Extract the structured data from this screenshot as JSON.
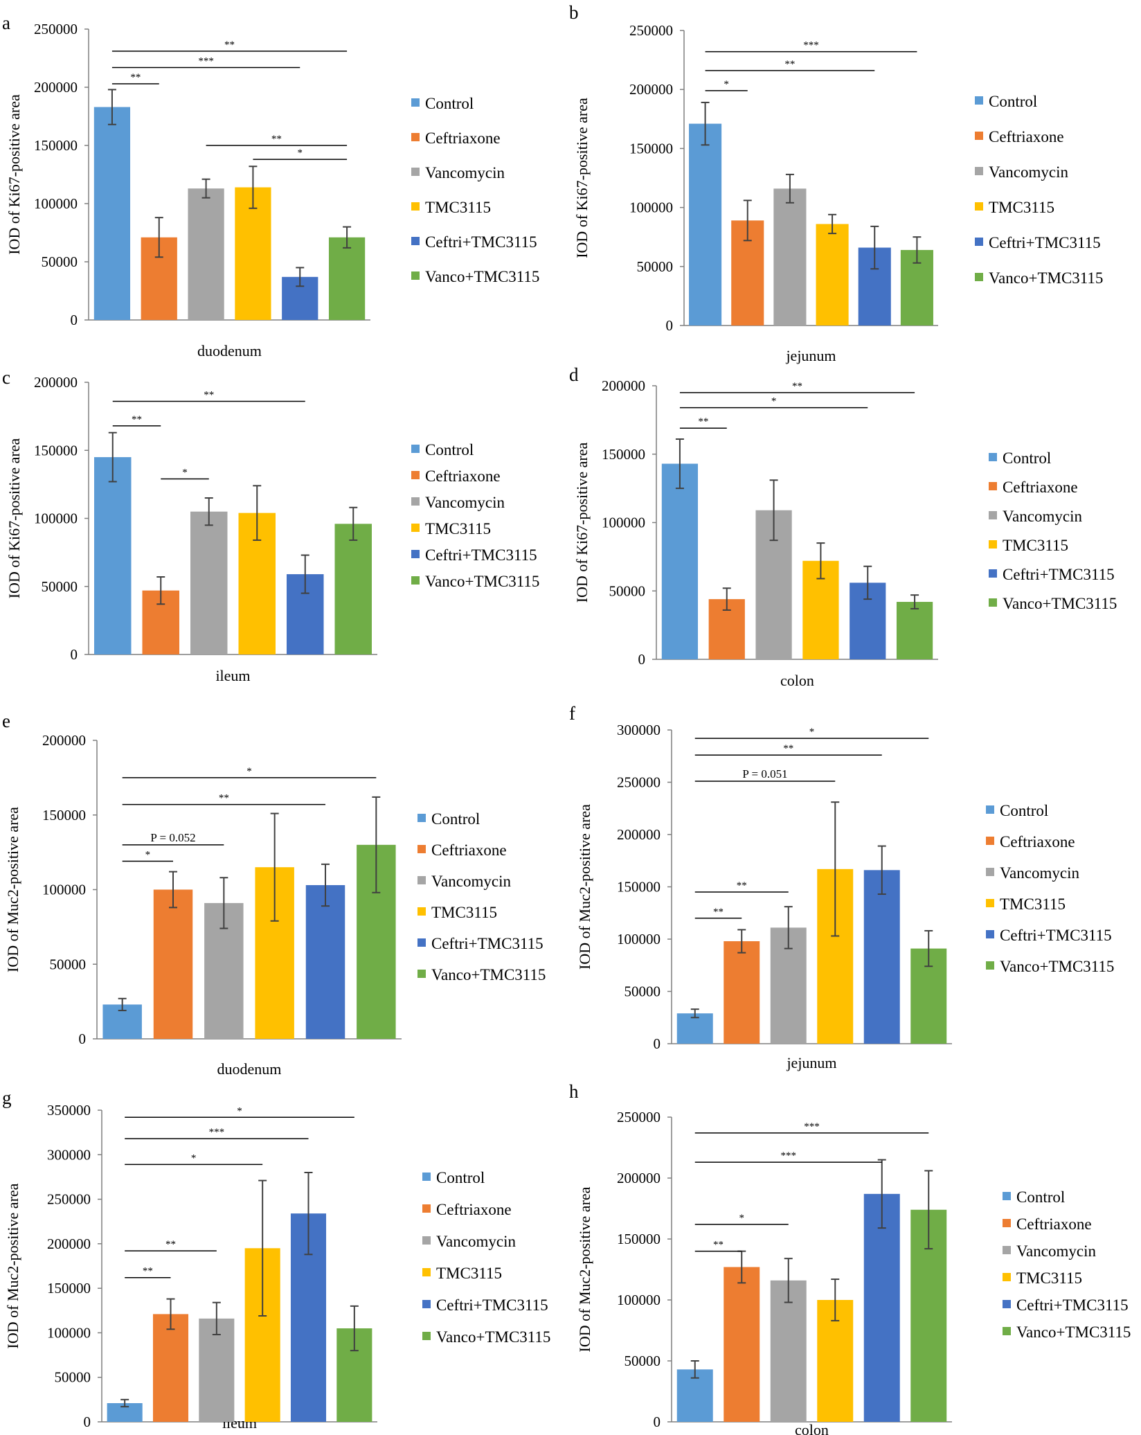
{
  "colors": {
    "Control": "#5b9bd5",
    "Ceftriaxone": "#ed7d31",
    "Vancomycin": "#a5a5a5",
    "TMC3115": "#ffc000",
    "Ceftri+TMC3115": "#4472c4",
    "Vanco+TMC3115": "#70ad47"
  },
  "chart_data": [
    {
      "panel": "a",
      "type": "bar",
      "ylabel": "IOD of Ki67-positive area",
      "xlabel": "duodenum",
      "ylim": [
        0,
        250000
      ],
      "yticks": [
        0,
        50000,
        100000,
        150000,
        200000,
        250000
      ],
      "series": [
        {
          "name": "Control",
          "value": 183000,
          "err": 15000
        },
        {
          "name": "Ceftriaxone",
          "value": 71000,
          "err": 17000
        },
        {
          "name": "Vancomycin",
          "value": 113000,
          "err": 8000
        },
        {
          "name": "TMC3115",
          "value": 114000,
          "err": 18000
        },
        {
          "name": "Ceftri+TMC3115",
          "value": 37000,
          "err": 8000
        },
        {
          "name": "Vanco+TMC3115",
          "value": 71000,
          "err": 9000
        }
      ],
      "annotations": [
        {
          "from": 0,
          "to": 5,
          "level": 231000,
          "label": "**"
        },
        {
          "from": 0,
          "to": 4,
          "level": 217000,
          "label": "***"
        },
        {
          "from": 0,
          "to": 1,
          "level": 203000,
          "label": "**"
        },
        {
          "from": 2,
          "to": 5,
          "level": 150000,
          "label": "**"
        },
        {
          "from": 3,
          "to": 5,
          "level": 138000,
          "label": "*"
        }
      ]
    },
    {
      "panel": "b",
      "type": "bar",
      "ylabel": "IOD of Ki67-positive area",
      "xlabel": "jejunum",
      "ylim": [
        0,
        250000
      ],
      "yticks": [
        0,
        50000,
        100000,
        150000,
        200000,
        250000
      ],
      "series": [
        {
          "name": "Control",
          "value": 171000,
          "err": 18000
        },
        {
          "name": "Ceftriaxone",
          "value": 89000,
          "err": 17000
        },
        {
          "name": "Vancomycin",
          "value": 116000,
          "err": 12000
        },
        {
          "name": "TMC3115",
          "value": 86000,
          "err": 8000
        },
        {
          "name": "Ceftri+TMC3115",
          "value": 66000,
          "err": 18000
        },
        {
          "name": "Vanco+TMC3115",
          "value": 64000,
          "err": 11000
        }
      ],
      "annotations": [
        {
          "from": 0,
          "to": 5,
          "level": 232000,
          "label": "***"
        },
        {
          "from": 0,
          "to": 4,
          "level": 216000,
          "label": "**"
        },
        {
          "from": 0,
          "to": 1,
          "level": 199000,
          "label": "*"
        }
      ]
    },
    {
      "panel": "c",
      "type": "bar",
      "ylabel": "IOD of Ki67-positive area",
      "xlabel": "ileum",
      "ylim": [
        0,
        200000
      ],
      "yticks": [
        0,
        50000,
        100000,
        150000,
        200000
      ],
      "series": [
        {
          "name": "Control",
          "value": 145000,
          "err": 18000
        },
        {
          "name": "Ceftriaxone",
          "value": 47000,
          "err": 10000
        },
        {
          "name": "Vancomycin",
          "value": 105000,
          "err": 10000
        },
        {
          "name": "TMC3115",
          "value": 104000,
          "err": 20000
        },
        {
          "name": "Ceftri+TMC3115",
          "value": 59000,
          "err": 14000
        },
        {
          "name": "Vanco+TMC3115",
          "value": 96000,
          "err": 12000
        }
      ],
      "annotations": [
        {
          "from": 0,
          "to": 4,
          "level": 186000,
          "label": "**"
        },
        {
          "from": 0,
          "to": 1,
          "level": 168000,
          "label": "**"
        },
        {
          "from": 1,
          "to": 2,
          "level": 129000,
          "label": "*"
        }
      ]
    },
    {
      "panel": "d",
      "type": "bar",
      "ylabel": "IOD of Ki67-positive area",
      "xlabel": "colon",
      "ylim": [
        0,
        200000
      ],
      "yticks": [
        0,
        50000,
        100000,
        150000,
        200000
      ],
      "series": [
        {
          "name": "Control",
          "value": 143000,
          "err": 18000
        },
        {
          "name": "Ceftriaxone",
          "value": 44000,
          "err": 8000
        },
        {
          "name": "Vancomycin",
          "value": 109000,
          "err": 22000
        },
        {
          "name": "TMC3115",
          "value": 72000,
          "err": 13000
        },
        {
          "name": "Ceftri+TMC3115",
          "value": 56000,
          "err": 12000
        },
        {
          "name": "Vanco+TMC3115",
          "value": 42000,
          "err": 5000
        }
      ],
      "annotations": [
        {
          "from": 0,
          "to": 5,
          "level": 195000,
          "label": "**"
        },
        {
          "from": 0,
          "to": 4,
          "level": 184000,
          "label": "*"
        },
        {
          "from": 0,
          "to": 1,
          "level": 169000,
          "label": "**"
        }
      ]
    },
    {
      "panel": "e",
      "type": "bar",
      "ylabel": "IOD of Muc2-positive area",
      "xlabel": "duodenum",
      "ylim": [
        0,
        200000
      ],
      "yticks": [
        0,
        50000,
        100000,
        150000,
        200000
      ],
      "series": [
        {
          "name": "Control",
          "value": 23000,
          "err": 4000
        },
        {
          "name": "Ceftriaxone",
          "value": 100000,
          "err": 12000
        },
        {
          "name": "Vancomycin",
          "value": 91000,
          "err": 17000
        },
        {
          "name": "TMC3115",
          "value": 115000,
          "err": 36000
        },
        {
          "name": "Ceftri+TMC3115",
          "value": 103000,
          "err": 14000
        },
        {
          "name": "Vanco+TMC3115",
          "value": 130000,
          "err": 32000
        }
      ],
      "annotations": [
        {
          "from": 0,
          "to": 5,
          "level": 175000,
          "label": "*"
        },
        {
          "from": 0,
          "to": 4,
          "level": 157000,
          "label": "**"
        },
        {
          "from": 0,
          "to": 2,
          "level": 130000,
          "label": "P = 0.052",
          "p": true
        },
        {
          "from": 0,
          "to": 1,
          "level": 119000,
          "label": "*"
        }
      ]
    },
    {
      "panel": "f",
      "type": "bar",
      "ylabel": "IOD of Muc2-positive area",
      "xlabel": "jejunum",
      "ylim": [
        0,
        300000
      ],
      "yticks": [
        0,
        50000,
        100000,
        150000,
        200000,
        250000,
        300000
      ],
      "series": [
        {
          "name": "Control",
          "value": 29000,
          "err": 4000
        },
        {
          "name": "Ceftriaxone",
          "value": 98000,
          "err": 11000
        },
        {
          "name": "Vancomycin",
          "value": 111000,
          "err": 20000
        },
        {
          "name": "TMC3115",
          "value": 167000,
          "err": 64000
        },
        {
          "name": "Ceftri+TMC3115",
          "value": 166000,
          "err": 23000
        },
        {
          "name": "Vanco+TMC3115",
          "value": 91000,
          "err": 17000
        }
      ],
      "annotations": [
        {
          "from": 0,
          "to": 5,
          "level": 292000,
          "label": "*"
        },
        {
          "from": 0,
          "to": 4,
          "level": 276000,
          "label": "**"
        },
        {
          "from": 0,
          "to": 3,
          "level": 251000,
          "label": "P = 0.051",
          "p": true
        },
        {
          "from": 0,
          "to": 2,
          "level": 145000,
          "label": "**"
        },
        {
          "from": 0,
          "to": 1,
          "level": 120000,
          "label": "**"
        }
      ]
    },
    {
      "panel": "g",
      "type": "bar",
      "ylabel": "IOD of Muc2-positive area",
      "xlabel": "ileum",
      "ylim": [
        0,
        350000
      ],
      "yticks": [
        0,
        50000,
        100000,
        150000,
        200000,
        250000,
        300000,
        350000
      ],
      "series": [
        {
          "name": "Control",
          "value": 21000,
          "err": 4000
        },
        {
          "name": "Ceftriaxone",
          "value": 121000,
          "err": 17000
        },
        {
          "name": "Vancomycin",
          "value": 116000,
          "err": 18000
        },
        {
          "name": "TMC3115",
          "value": 195000,
          "err": 76000
        },
        {
          "name": "Ceftri+TMC3115",
          "value": 234000,
          "err": 46000
        },
        {
          "name": "Vanco+TMC3115",
          "value": 105000,
          "err": 25000
        }
      ],
      "annotations": [
        {
          "from": 0,
          "to": 5,
          "level": 342000,
          "label": "*"
        },
        {
          "from": 0,
          "to": 4,
          "level": 318000,
          "label": "***"
        },
        {
          "from": 0,
          "to": 3,
          "level": 289000,
          "label": "*"
        },
        {
          "from": 0,
          "to": 2,
          "level": 192000,
          "label": "**"
        },
        {
          "from": 0,
          "to": 1,
          "level": 162000,
          "label": "**"
        }
      ]
    },
    {
      "panel": "h",
      "type": "bar",
      "ylabel": "IOD of Muc2-positive area",
      "xlabel": "colon",
      "ylim": [
        0,
        250000
      ],
      "yticks": [
        0,
        50000,
        100000,
        150000,
        200000,
        250000
      ],
      "series": [
        {
          "name": "Control",
          "value": 43000,
          "err": 7000
        },
        {
          "name": "Ceftriaxone",
          "value": 127000,
          "err": 13000
        },
        {
          "name": "Vancomycin",
          "value": 116000,
          "err": 18000
        },
        {
          "name": "TMC3115",
          "value": 100000,
          "err": 17000
        },
        {
          "name": "Ceftri+TMC3115",
          "value": 187000,
          "err": 28000
        },
        {
          "name": "Vanco+TMC3115",
          "value": 174000,
          "err": 32000
        }
      ],
      "annotations": [
        {
          "from": 0,
          "to": 5,
          "level": 237000,
          "label": "***"
        },
        {
          "from": 0,
          "to": 4,
          "level": 213000,
          "label": "***"
        },
        {
          "from": 0,
          "to": 2,
          "level": 162000,
          "label": "*"
        },
        {
          "from": 0,
          "to": 1,
          "level": 140000,
          "label": "**"
        }
      ]
    }
  ]
}
